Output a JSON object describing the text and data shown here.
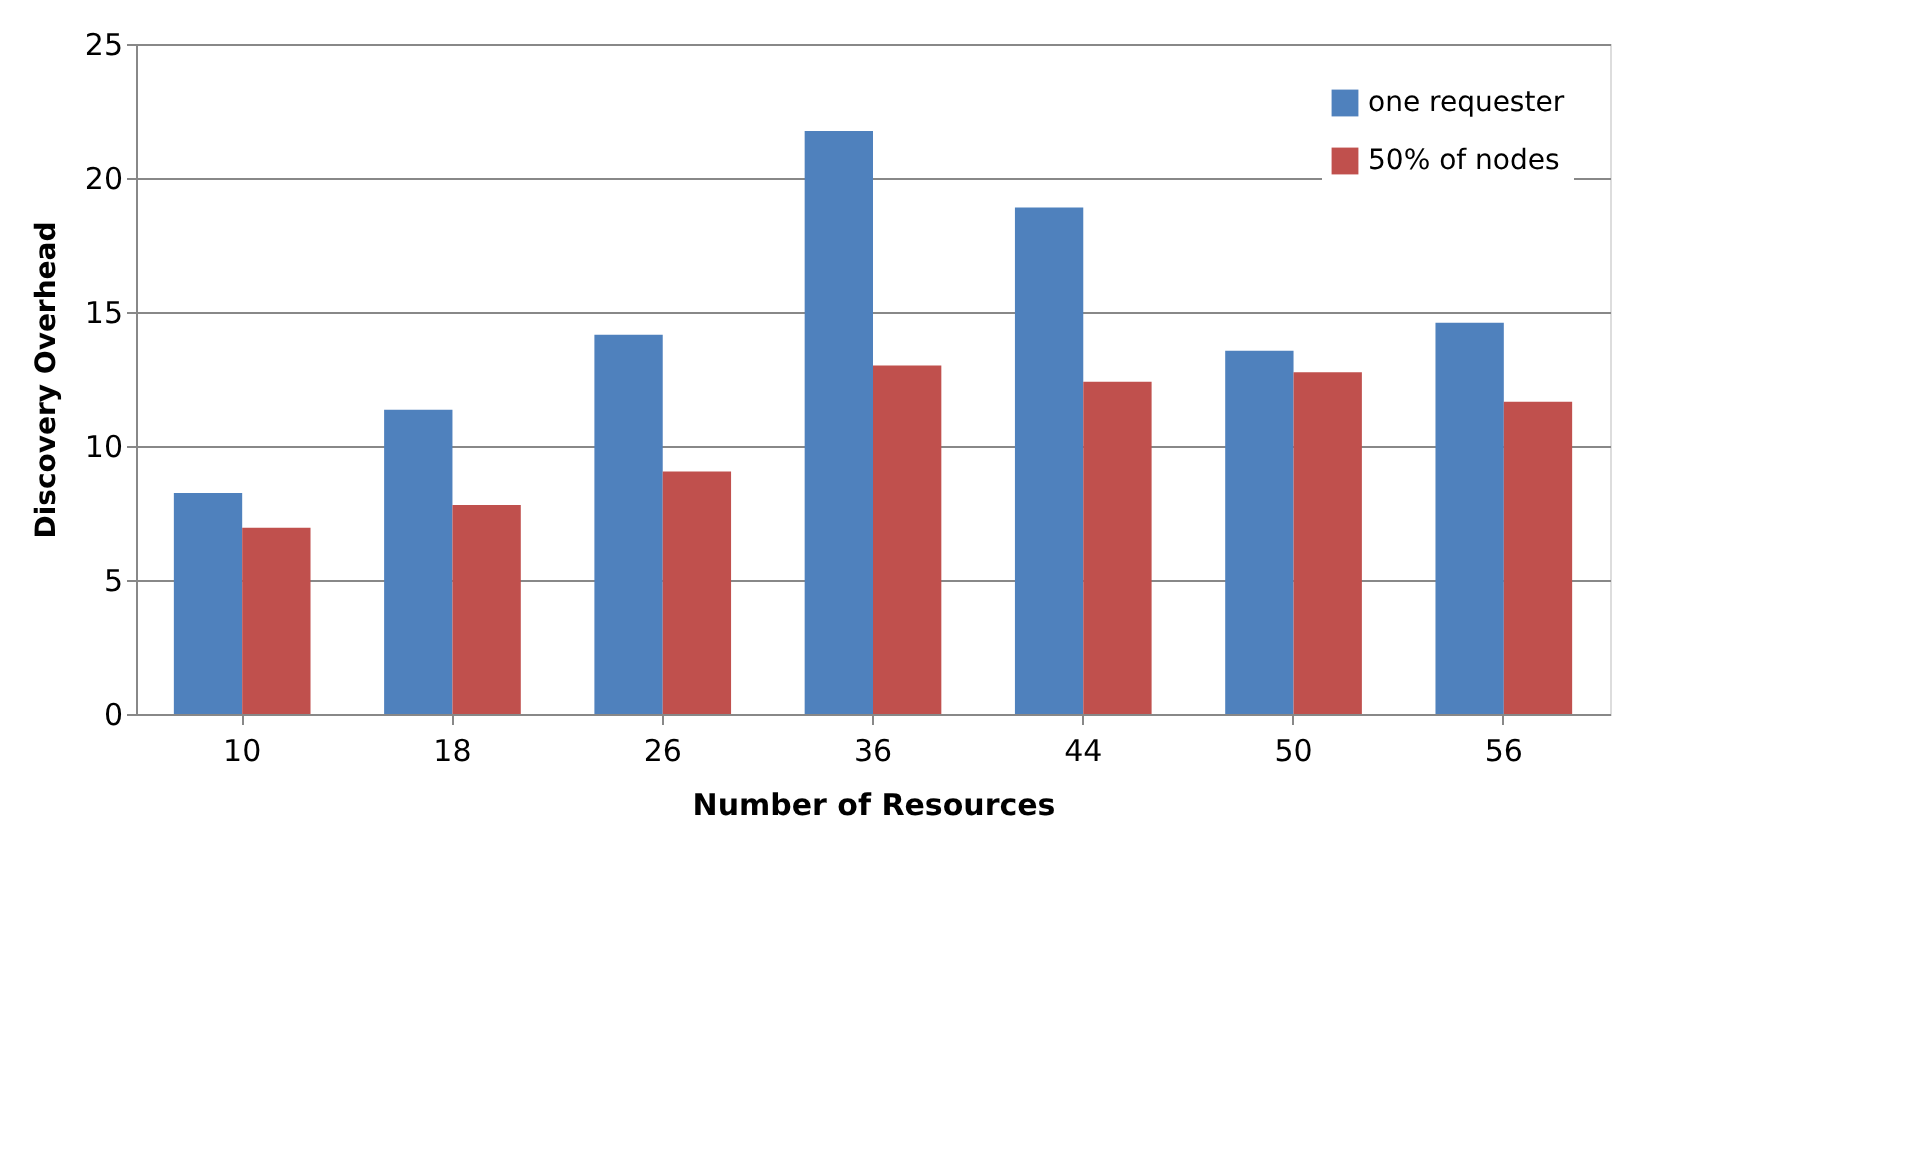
{
  "chart_data": {
    "type": "bar",
    "xlabel": "Number of Resources",
    "ylabel": "Discovery Overhead",
    "categories": [
      "10",
      "18",
      "26",
      "36",
      "44",
      "50",
      "56"
    ],
    "series": [
      {
        "name": "one requester",
        "color": "#4f81bd",
        "values": [
          8.25,
          11.35,
          14.15,
          21.75,
          18.9,
          13.55,
          14.6
        ]
      },
      {
        "name": "50% of nodes",
        "color": "#c0504d",
        "values": [
          6.95,
          7.8,
          9.05,
          13.0,
          12.4,
          12.75,
          11.65
        ]
      }
    ],
    "ylim": [
      0,
      25
    ],
    "yticks": [
      0,
      5,
      10,
      15,
      20,
      25
    ],
    "grid": "y",
    "legend": "top right"
  }
}
